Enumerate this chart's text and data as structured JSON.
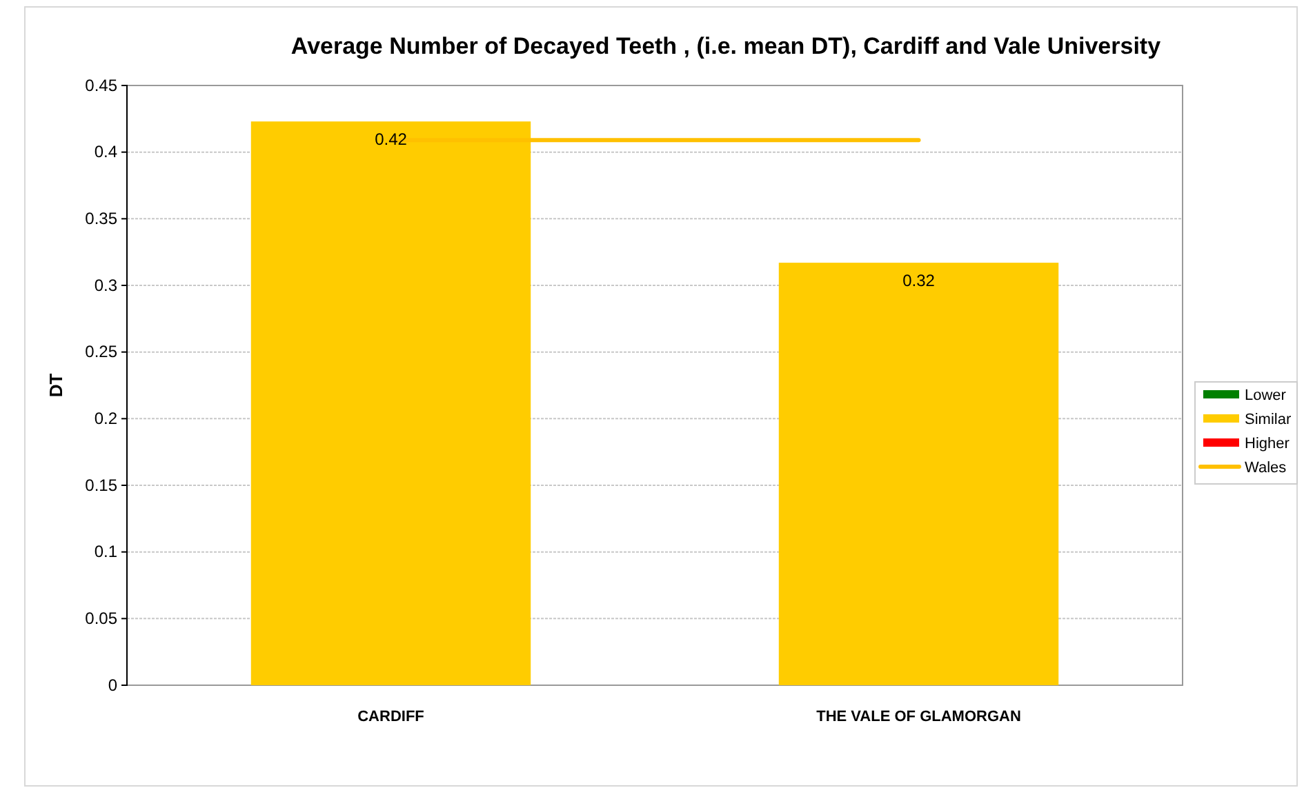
{
  "chart_data": {
    "type": "bar",
    "title": "Average Number of Decayed Teeth , (i.e. mean DT), Cardiff and Vale University",
    "ylabel": "DT",
    "categories": [
      "CARDIFF",
      "THE VALE OF GLAMORGAN"
    ],
    "series": [
      {
        "name": "Lower",
        "color": "#008000",
        "values": [
          null,
          null
        ]
      },
      {
        "name": "Similar",
        "color": "#ffcc00",
        "values": [
          0.423,
          0.317
        ],
        "value_labels": [
          "0.42",
          "0.32"
        ]
      },
      {
        "name": "Higher",
        "color": "#ff0000",
        "values": [
          null,
          null
        ]
      },
      {
        "name": "Wales",
        "type": "line",
        "color": "#ffc000",
        "values": [
          0.409,
          0.409
        ]
      }
    ],
    "ylim": [
      0,
      0.45
    ],
    "yticks": [
      0,
      0.05,
      0.1,
      0.15,
      0.2,
      0.25,
      0.3,
      0.35,
      0.4,
      0.45
    ],
    "grid": "y",
    "legend": "right"
  }
}
